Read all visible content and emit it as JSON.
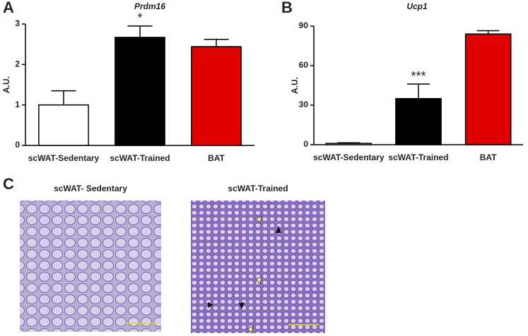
{
  "chart_data": [
    {
      "type": "bar",
      "panel_label": "A",
      "title": "Prdm16",
      "ylabel": "A.U.",
      "categories": [
        "scWAT-Sedentary",
        "scWAT-Trained",
        "BAT"
      ],
      "values": [
        1.0,
        2.67,
        2.44
      ],
      "errors": [
        0.35,
        0.28,
        0.18
      ],
      "colors": [
        "#ffffff",
        "#000000",
        "#e00000"
      ],
      "edgecolor": "#000000",
      "significance": [
        null,
        "*",
        null
      ],
      "ylim": [
        0,
        3
      ],
      "yticks": [
        0,
        1,
        2,
        3
      ]
    },
    {
      "type": "bar",
      "panel_label": "B",
      "title": "Ucp1",
      "ylabel": "A.U.",
      "categories": [
        "scWAT-Sedentary",
        "scWAT-Trained",
        "BAT"
      ],
      "values": [
        1,
        35,
        84
      ],
      "errors": [
        0.5,
        11,
        2.5
      ],
      "colors": [
        "#ffffff",
        "#000000",
        "#e00000"
      ],
      "edgecolor": "#000000",
      "significance": [
        null,
        "***",
        null
      ],
      "ylim": [
        0,
        90
      ],
      "yticks": [
        0,
        30,
        60,
        90
      ]
    }
  ],
  "panel_c": {
    "label": "C",
    "images": [
      {
        "title": "scWAT- Sedentary"
      },
      {
        "title": "scWAT-Trained"
      }
    ]
  }
}
